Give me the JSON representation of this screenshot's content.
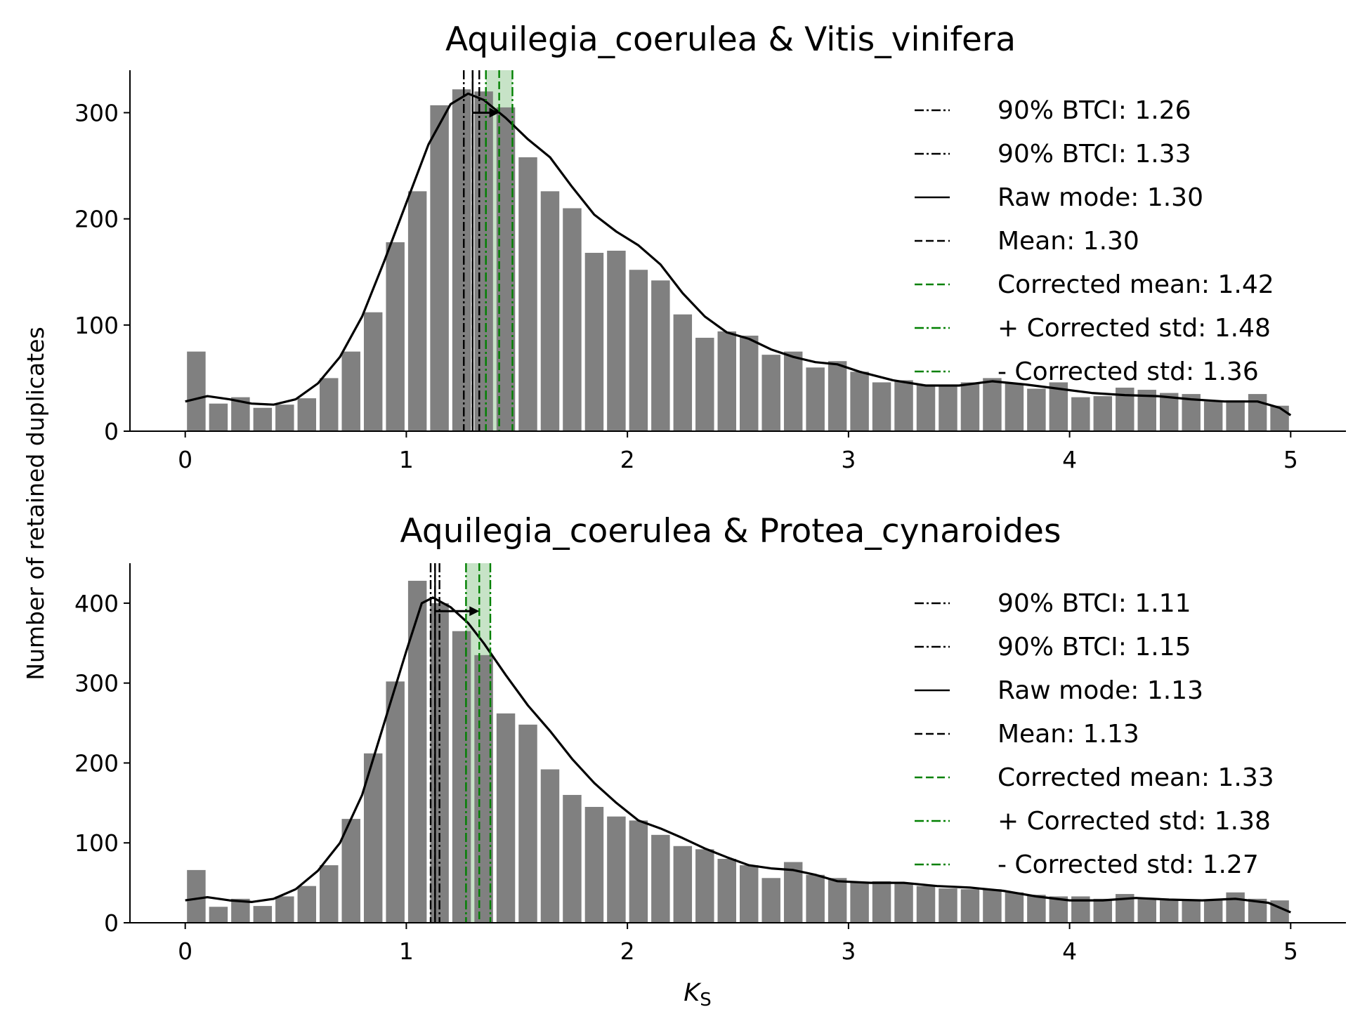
{
  "shared_ylabel": "Number of retained duplicates",
  "chart_data": [
    {
      "type": "bar",
      "title": "Aquilegia_coerulea & Vitis_vinifera",
      "xlabel": "",
      "ylabel": "",
      "xlim": [
        -0.25,
        5.25
      ],
      "ylim": [
        0,
        340
      ],
      "x_ticks": [
        0,
        1,
        2,
        3,
        4,
        5
      ],
      "x_tick_labels": [
        "0",
        "1",
        "2",
        "3",
        "4",
        "5"
      ],
      "y_ticks": [
        0,
        100,
        200,
        300
      ],
      "y_tick_labels": [
        "0",
        "100",
        "200",
        "300"
      ],
      "bin_width": 0.1,
      "bin_start": 0.0,
      "bar_color": "#808080",
      "values": [
        75,
        26,
        32,
        22,
        25,
        31,
        50,
        75,
        112,
        178,
        226,
        307,
        322,
        320,
        305,
        258,
        226,
        210,
        168,
        170,
        152,
        142,
        110,
        88,
        94,
        90,
        72,
        75,
        60,
        66,
        56,
        46,
        48,
        44,
        43,
        46,
        50,
        45,
        40,
        46,
        32,
        33,
        41,
        39,
        36,
        35,
        28,
        29,
        35,
        24
      ],
      "kde": [
        [
          0.0,
          28
        ],
        [
          0.1,
          33
        ],
        [
          0.2,
          30
        ],
        [
          0.3,
          26
        ],
        [
          0.4,
          25
        ],
        [
          0.5,
          30
        ],
        [
          0.6,
          45
        ],
        [
          0.7,
          70
        ],
        [
          0.8,
          108
        ],
        [
          0.9,
          160
        ],
        [
          1.0,
          215
        ],
        [
          1.1,
          270
        ],
        [
          1.2,
          308
        ],
        [
          1.28,
          318
        ],
        [
          1.35,
          312
        ],
        [
          1.45,
          295
        ],
        [
          1.55,
          275
        ],
        [
          1.65,
          258
        ],
        [
          1.75,
          230
        ],
        [
          1.85,
          204
        ],
        [
          1.95,
          188
        ],
        [
          2.05,
          175
        ],
        [
          2.15,
          157
        ],
        [
          2.25,
          130
        ],
        [
          2.35,
          108
        ],
        [
          2.45,
          93
        ],
        [
          2.55,
          87
        ],
        [
          2.65,
          77
        ],
        [
          2.75,
          70
        ],
        [
          2.85,
          65
        ],
        [
          2.95,
          63
        ],
        [
          3.05,
          56
        ],
        [
          3.2,
          48
        ],
        [
          3.35,
          43
        ],
        [
          3.5,
          43
        ],
        [
          3.65,
          47
        ],
        [
          3.8,
          44
        ],
        [
          3.95,
          40
        ],
        [
          4.1,
          36
        ],
        [
          4.25,
          34
        ],
        [
          4.4,
          33
        ],
        [
          4.55,
          30
        ],
        [
          4.7,
          28
        ],
        [
          4.85,
          28
        ],
        [
          4.95,
          22
        ],
        [
          5.0,
          15
        ]
      ],
      "lines": {
        "btci_low": 1.26,
        "btci_high": 1.33,
        "raw_mode": 1.3,
        "mean": 1.3,
        "corrected_mean": 1.42,
        "corrected_std_plus": 1.48,
        "corrected_std_minus": 1.36
      },
      "arrow_y": 300,
      "legend_position": "upper right",
      "legend": [
        {
          "label": "90% BTCI: 1.26",
          "style": "dashdot",
          "color": "#000000"
        },
        {
          "label": "90% BTCI: 1.33",
          "style": "dashdot",
          "color": "#000000"
        },
        {
          "label": "Raw mode: 1.30",
          "style": "solid",
          "color": "#000000"
        },
        {
          "label": "Mean: 1.30",
          "style": "dashed",
          "color": "#000000"
        },
        {
          "label": "Corrected mean: 1.42",
          "style": "dashed",
          "color": "#008000"
        },
        {
          "label": "+ Corrected std: 1.48",
          "style": "dashdot",
          "color": "#008000"
        },
        {
          "label": "- Corrected std: 1.36",
          "style": "dashdot",
          "color": "#008000"
        }
      ]
    },
    {
      "type": "bar",
      "title": "Aquilegia_coerulea & Protea_cynaroides",
      "xlabel": "Ks",
      "ylabel": "",
      "xlim": [
        -0.25,
        5.25
      ],
      "ylim": [
        0,
        450
      ],
      "x_ticks": [
        0,
        1,
        2,
        3,
        4,
        5
      ],
      "x_tick_labels": [
        "0",
        "1",
        "2",
        "3",
        "4",
        "5"
      ],
      "y_ticks": [
        0,
        100,
        200,
        300,
        400
      ],
      "y_tick_labels": [
        "0",
        "100",
        "200",
        "300",
        "400"
      ],
      "bin_width": 0.1,
      "bin_start": 0.0,
      "bar_color": "#808080",
      "values": [
        66,
        20,
        30,
        21,
        33,
        46,
        72,
        130,
        212,
        302,
        428,
        400,
        365,
        335,
        262,
        248,
        192,
        160,
        145,
        133,
        128,
        110,
        96,
        92,
        80,
        72,
        56,
        76,
        60,
        56,
        50,
        52,
        50,
        46,
        43,
        42,
        42,
        38,
        35,
        33,
        33,
        30,
        36,
        31,
        28,
        28,
        28,
        38,
        30,
        28
      ],
      "kde": [
        [
          0.0,
          28
        ],
        [
          0.1,
          32
        ],
        [
          0.2,
          28
        ],
        [
          0.3,
          26
        ],
        [
          0.4,
          30
        ],
        [
          0.5,
          42
        ],
        [
          0.6,
          65
        ],
        [
          0.7,
          100
        ],
        [
          0.8,
          160
        ],
        [
          0.9,
          250
        ],
        [
          1.0,
          340
        ],
        [
          1.07,
          400
        ],
        [
          1.12,
          407
        ],
        [
          1.2,
          395
        ],
        [
          1.28,
          375
        ],
        [
          1.35,
          350
        ],
        [
          1.45,
          310
        ],
        [
          1.55,
          272
        ],
        [
          1.65,
          240
        ],
        [
          1.75,
          205
        ],
        [
          1.85,
          175
        ],
        [
          1.95,
          150
        ],
        [
          2.05,
          128
        ],
        [
          2.15,
          118
        ],
        [
          2.25,
          106
        ],
        [
          2.35,
          93
        ],
        [
          2.45,
          82
        ],
        [
          2.55,
          72
        ],
        [
          2.65,
          68
        ],
        [
          2.75,
          66
        ],
        [
          2.85,
          60
        ],
        [
          2.95,
          52
        ],
        [
          3.1,
          50
        ],
        [
          3.25,
          50
        ],
        [
          3.4,
          46
        ],
        [
          3.55,
          44
        ],
        [
          3.7,
          40
        ],
        [
          3.85,
          33
        ],
        [
          4.0,
          28
        ],
        [
          4.15,
          28
        ],
        [
          4.3,
          31
        ],
        [
          4.45,
          29
        ],
        [
          4.6,
          28
        ],
        [
          4.75,
          30
        ],
        [
          4.9,
          25
        ],
        [
          5.0,
          13
        ]
      ],
      "lines": {
        "btci_low": 1.11,
        "btci_high": 1.15,
        "raw_mode": 1.13,
        "mean": 1.13,
        "corrected_mean": 1.33,
        "corrected_std_plus": 1.38,
        "corrected_std_minus": 1.27
      },
      "arrow_y": 390,
      "legend_position": "upper right",
      "legend": [
        {
          "label": "90% BTCI: 1.11",
          "style": "dashdot",
          "color": "#000000"
        },
        {
          "label": "90% BTCI: 1.15",
          "style": "dashdot",
          "color": "#000000"
        },
        {
          "label": "Raw mode: 1.13",
          "style": "solid",
          "color": "#000000"
        },
        {
          "label": "Mean: 1.13",
          "style": "dashed",
          "color": "#000000"
        },
        {
          "label": "Corrected mean: 1.33",
          "style": "dashed",
          "color": "#008000"
        },
        {
          "label": "+ Corrected std: 1.38",
          "style": "dashdot",
          "color": "#008000"
        },
        {
          "label": "- Corrected std: 1.27",
          "style": "dashdot",
          "color": "#008000"
        }
      ]
    }
  ]
}
